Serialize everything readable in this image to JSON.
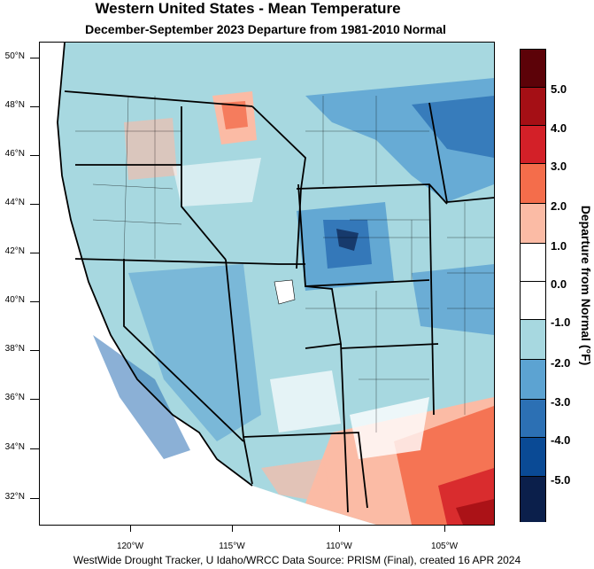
{
  "title": "Western United States - Mean Temperature",
  "subtitle": "December-September 2023  Departure from 1981-2010 Normal",
  "footer": "WestWide Drought Tracker, U Idaho/WRCC Data Source: PRISM (Final), created 16 APR 2024",
  "map": {
    "region": "Western United States",
    "lat_ticks": [
      "50°N",
      "48°N",
      "46°N",
      "44°N",
      "42°N",
      "40°N",
      "38°N",
      "36°N",
      "34°N",
      "32°N"
    ],
    "lon_ticks": [
      "120°W",
      "115°W",
      "110°W",
      "105°W"
    ]
  },
  "legend": {
    "title": "Departure from Normal (°F)",
    "labels": [
      "5.0",
      "4.0",
      "3.0",
      "2.0",
      "1.0",
      "0.0",
      "-1.0",
      "-2.0",
      "-3.0",
      "-4.0",
      "-5.0"
    ],
    "colors": [
      "#5c0208",
      "#a50f15",
      "#d32028",
      "#f46d4b",
      "#fbbba5",
      "#ffffff",
      "#ffffff",
      "#a7d8e0",
      "#5ca3d2",
      "#2c70b4",
      "#0a4a95",
      "#0b1f4b"
    ]
  }
}
